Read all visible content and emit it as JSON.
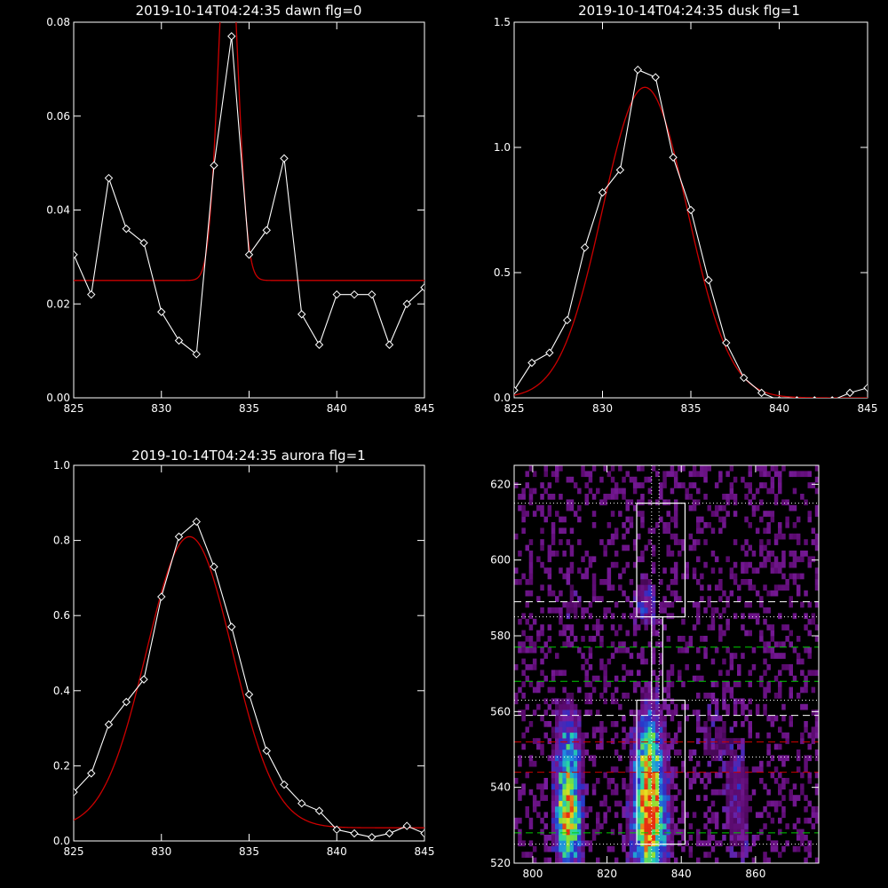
{
  "chart_data": [
    {
      "type": "line",
      "panel": "top-left",
      "title": "2019-10-14T04:24:35 dawn flg=0",
      "xlim": [
        825,
        845
      ],
      "ylim": [
        0.0,
        0.08
      ],
      "xticks": [
        825,
        830,
        835,
        840,
        845
      ],
      "yticks": [
        0.0,
        0.02,
        0.04,
        0.06,
        0.08
      ],
      "xtick_labels": [
        "825",
        "830",
        "835",
        "840",
        "845"
      ],
      "ytick_labels": [
        "0.00",
        "0.02",
        "0.04",
        "0.06",
        "0.08"
      ],
      "series": [
        {
          "color": "#ffffff",
          "marker": "diamond",
          "x": [
            825,
            826,
            827,
            828,
            829,
            830,
            831,
            832,
            833,
            834,
            835,
            836,
            837,
            838,
            839,
            840,
            841,
            842,
            843,
            844,
            845
          ],
          "y": [
            0.0305,
            0.022,
            0.0468,
            0.036,
            0.033,
            0.0183,
            0.0122,
            0.0093,
            0.0495,
            0.077,
            0.0305,
            0.0357,
            0.051,
            0.0178,
            0.0113,
            0.022,
            0.022,
            0.022,
            0.0113,
            0.02,
            0.0235
          ]
        },
        {
          "color": "#cc0000",
          "model": "gaussian",
          "baseline": 0.025,
          "amplitude": 0.078,
          "center": 833.8,
          "sigma": 0.55
        }
      ]
    },
    {
      "type": "line",
      "panel": "top-right",
      "title": "2019-10-14T04:24:35 dusk flg=1",
      "xlim": [
        825,
        845
      ],
      "ylim": [
        0.0,
        1.5
      ],
      "xticks": [
        825,
        830,
        835,
        840,
        845
      ],
      "yticks": [
        0.0,
        0.5,
        1.0,
        1.5
      ],
      "xtick_labels": [
        "825",
        "830",
        "835",
        "840",
        "845"
      ],
      "ytick_labels": [
        "0.0",
        "0.5",
        "1.0",
        "1.5"
      ],
      "series": [
        {
          "color": "#ffffff",
          "marker": "diamond",
          "x": [
            825,
            826,
            827,
            828,
            829,
            830,
            831,
            832,
            833,
            834,
            835,
            836,
            837,
            838,
            839,
            840,
            841,
            842,
            843,
            844,
            845
          ],
          "y": [
            0.03,
            0.14,
            0.18,
            0.31,
            0.6,
            0.82,
            0.91,
            1.31,
            1.28,
            0.96,
            0.75,
            0.47,
            0.22,
            0.08,
            0.02,
            -0.01,
            -0.01,
            -0.01,
            -0.01,
            0.02,
            0.04
          ]
        },
        {
          "color": "#cc0000",
          "model": "gaussian",
          "baseline": 0.0,
          "amplitude": 1.24,
          "center": 832.4,
          "sigma": 2.4
        }
      ]
    },
    {
      "type": "line",
      "panel": "bottom-left",
      "title": "2019-10-14T04:24:35 aurora flg=1",
      "xlim": [
        825,
        845
      ],
      "ylim": [
        0.0,
        1.0
      ],
      "xticks": [
        825,
        830,
        835,
        840,
        845
      ],
      "yticks": [
        0.0,
        0.2,
        0.4,
        0.6,
        0.8,
        1.0
      ],
      "xtick_labels": [
        "825",
        "830",
        "835",
        "840",
        "845"
      ],
      "ytick_labels": [
        "0.0",
        "0.2",
        "0.4",
        "0.6",
        "0.8",
        "1.0"
      ],
      "series": [
        {
          "color": "#ffffff",
          "marker": "diamond",
          "x": [
            825,
            826,
            827,
            828,
            829,
            830,
            831,
            832,
            833,
            834,
            835,
            836,
            837,
            838,
            839,
            840,
            841,
            842,
            843,
            844,
            845
          ],
          "y": [
            0.13,
            0.18,
            0.31,
            0.37,
            0.43,
            0.65,
            0.81,
            0.85,
            0.73,
            0.57,
            0.39,
            0.24,
            0.15,
            0.1,
            0.08,
            0.03,
            0.02,
            0.01,
            0.02,
            0.04,
            0.02
          ]
        },
        {
          "color": "#cc0000",
          "model": "gaussian",
          "baseline": 0.035,
          "amplitude": 0.775,
          "center": 831.6,
          "sigma": 2.45
        }
      ]
    },
    {
      "type": "heatmap",
      "panel": "bottom-right",
      "title": "",
      "xlim": [
        795,
        877
      ],
      "ylim": [
        520,
        625
      ],
      "xticks": [
        800,
        820,
        840,
        860
      ],
      "yticks": [
        520,
        540,
        560,
        580,
        600,
        620
      ],
      "xtick_labels": [
        "800",
        "820",
        "840",
        "860"
      ],
      "ytick_labels": [
        "520",
        "540",
        "560",
        "580",
        "600",
        "620"
      ],
      "colormap": [
        "#000000",
        "#5a0a6e",
        "#7a1c9c",
        "#2a30c8",
        "#1f8ce0",
        "#26d4a8",
        "#7ae03a",
        "#e8e020",
        "#e83010"
      ],
      "blobs": [
        {
          "x": 809,
          "y": 530,
          "sx": 2.2,
          "sy": 8.0,
          "amp": 0.95
        },
        {
          "x": 809,
          "y": 548,
          "sx": 2.5,
          "sy": 9.0,
          "amp": 0.45
        },
        {
          "x": 831,
          "y": 530,
          "sx": 3.0,
          "sy": 10.0,
          "amp": 1.0
        },
        {
          "x": 831,
          "y": 549,
          "sx": 2.6,
          "sy": 9.0,
          "amp": 0.55
        },
        {
          "x": 830,
          "y": 588,
          "sx": 2.0,
          "sy": 5.0,
          "amp": 0.25
        },
        {
          "x": 810,
          "y": 588,
          "sx": 2.0,
          "sy": 4.0,
          "amp": 0.15
        },
        {
          "x": 855,
          "y": 535,
          "sx": 3.0,
          "sy": 12.0,
          "amp": 0.18
        },
        {
          "x": 848,
          "y": 552,
          "sx": 4.0,
          "sy": 8.0,
          "amp": 0.12
        }
      ],
      "horizontal_lines": [
        {
          "y": 615,
          "color": "#ffffff",
          "style": "dotted"
        },
        {
          "y": 589,
          "color": "#ffffff",
          "style": "dashed"
        },
        {
          "y": 585,
          "color": "#ffffff",
          "style": "dotted"
        },
        {
          "y": 577,
          "color": "#00cc00",
          "style": "dashed"
        },
        {
          "y": 568,
          "color": "#00cc00",
          "style": "dashed"
        },
        {
          "y": 563,
          "color": "#ffffff",
          "style": "dotted"
        },
        {
          "y": 559,
          "color": "#ffffff",
          "style": "dashed"
        },
        {
          "y": 552,
          "color": "#cc0000",
          "style": "dashed"
        },
        {
          "y": 548,
          "color": "#ffffff",
          "style": "dotted"
        },
        {
          "y": 544,
          "color": "#cc0000",
          "style": "dashed"
        },
        {
          "y": 528,
          "color": "#00cc00",
          "style": "dashed"
        },
        {
          "y": 525,
          "color": "#ffffff",
          "style": "dotted"
        }
      ],
      "vertical_lines": [
        {
          "x": 832,
          "color": "#ffffff",
          "style": "dotted"
        },
        {
          "x": 834,
          "color": "#ffffff",
          "style": "dotted"
        }
      ],
      "boxes": [
        {
          "x0": 828,
          "x1": 841,
          "y0": 585,
          "y1": 615
        },
        {
          "x0": 832,
          "x1": 835,
          "y0": 563,
          "y1": 585
        },
        {
          "x0": 828,
          "x1": 841,
          "y0": 525,
          "y1": 563
        }
      ]
    }
  ]
}
